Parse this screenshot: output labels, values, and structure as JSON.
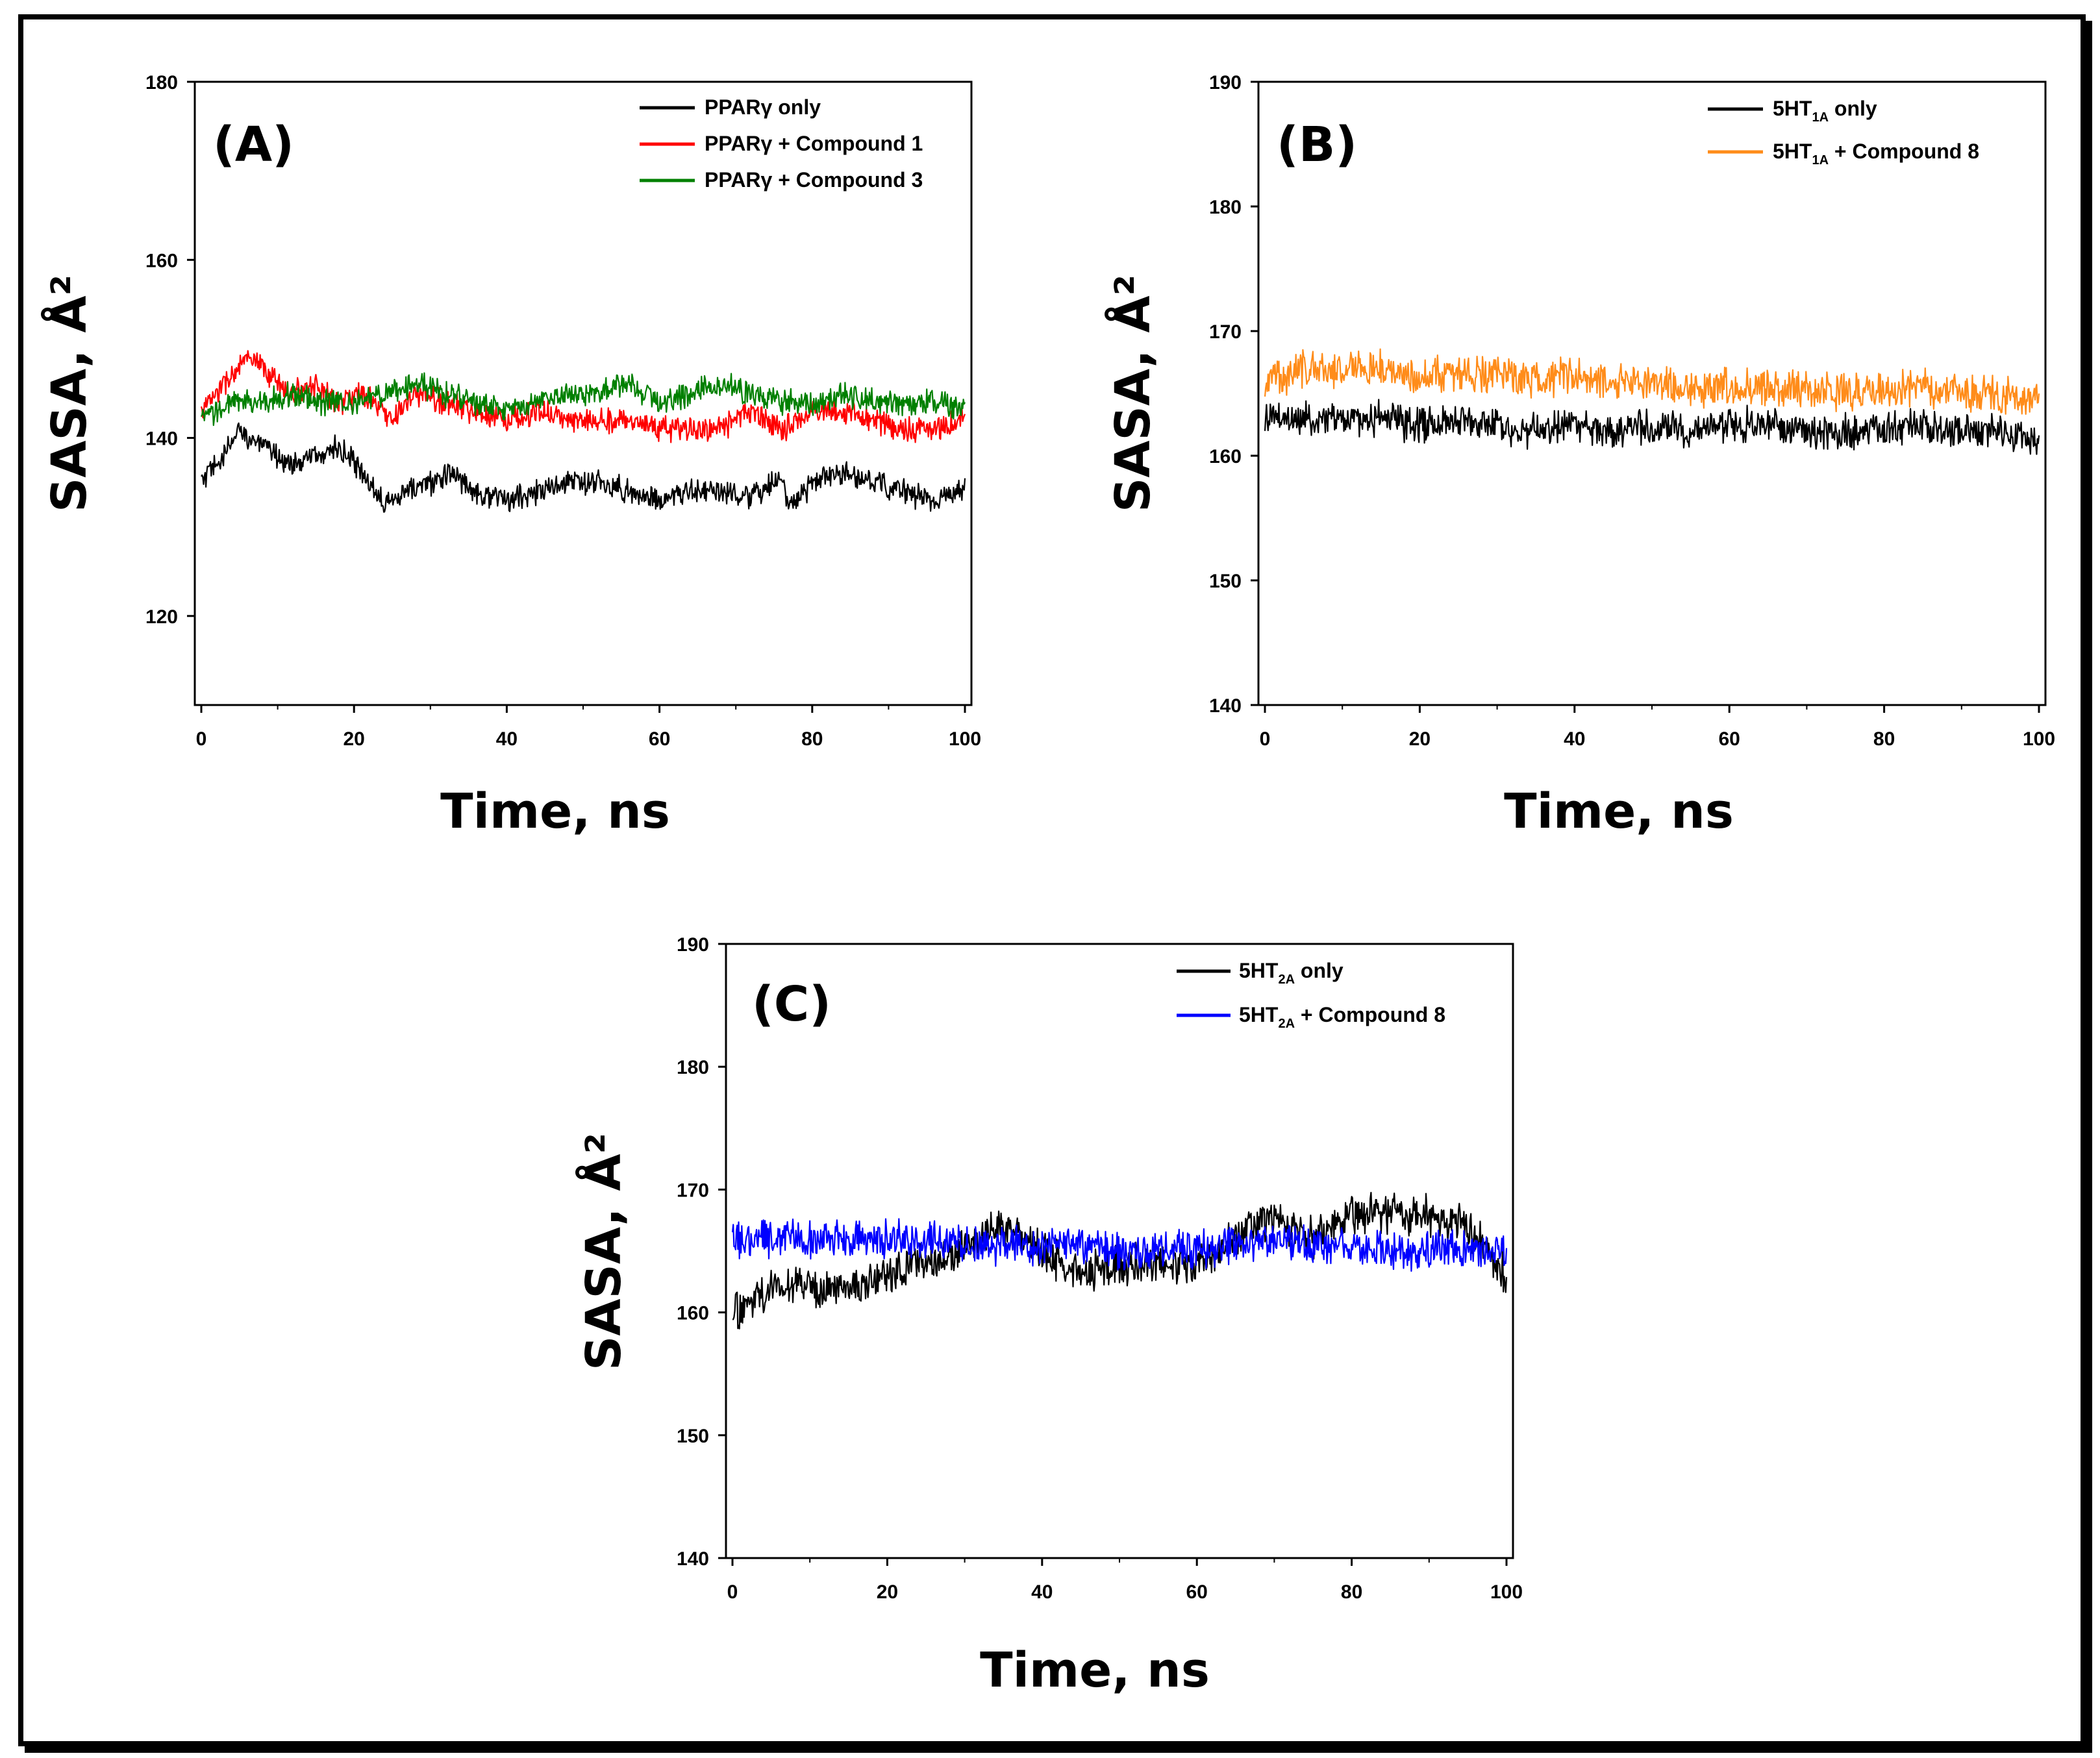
{
  "chart_data": [
    {
      "id": "A",
      "type": "line",
      "panel_label": "(A)",
      "xlabel": "Time, ns",
      "ylabel": "SASA, Å²",
      "xlim": [
        0,
        100
      ],
      "ylim": [
        110,
        180
      ],
      "xticks": [
        "0",
        "20",
        "40",
        "60",
        "80",
        "100"
      ],
      "yticks": [
        "120",
        "140",
        "160",
        "180"
      ],
      "legend_position": "top-right",
      "series": [
        {
          "name": "PPARγ only",
          "legend": {
            "main": "PPARγ only",
            "sub": "",
            "tail": ""
          },
          "color": "#000000",
          "noise": 1.1,
          "x": [
            0,
            3,
            5,
            8,
            12,
            15,
            18,
            21,
            24,
            27,
            30,
            33,
            36,
            40,
            44,
            48,
            52,
            56,
            60,
            64,
            68,
            72,
            76,
            77,
            80,
            84,
            88,
            92,
            96,
            100
          ],
          "values": [
            135,
            138,
            141,
            139,
            137,
            138,
            139,
            136,
            133,
            134,
            135,
            136,
            134,
            133,
            134,
            135,
            135,
            134,
            133,
            134,
            134,
            133,
            136,
            132,
            135,
            136,
            135,
            134,
            133,
            134
          ]
        },
        {
          "name": "PPARγ + Compound 1",
          "legend": {
            "main": "PPARγ + Compound 1",
            "sub": "",
            "tail": ""
          },
          "color": "#ff0000",
          "noise": 1.1,
          "x": [
            0,
            3,
            6,
            9,
            12,
            15,
            18,
            21,
            25,
            28,
            32,
            36,
            40,
            44,
            48,
            52,
            56,
            60,
            64,
            68,
            72,
            76,
            80,
            84,
            88,
            92,
            96,
            100
          ],
          "values": [
            143,
            146,
            149,
            147,
            145,
            146,
            144,
            145,
            142,
            145,
            144,
            143,
            142,
            143,
            142,
            142,
            142,
            141,
            141,
            141,
            143,
            141,
            143,
            143,
            142,
            141,
            141,
            142
          ]
        },
        {
          "name": "PPARγ + Compound 3",
          "legend": {
            "main": "PPARγ + Compound 3",
            "sub": "",
            "tail": ""
          },
          "color": "#008000",
          "noise": 1.1,
          "x": [
            0,
            4,
            8,
            12,
            16,
            20,
            24,
            28,
            32,
            36,
            40,
            44,
            48,
            52,
            56,
            60,
            64,
            68,
            72,
            76,
            80,
            84,
            88,
            92,
            96,
            100
          ],
          "values": [
            142,
            144,
            144,
            145,
            144,
            144,
            145,
            146,
            145,
            144,
            143,
            144,
            145,
            145,
            146,
            144,
            145,
            146,
            145,
            144,
            144,
            145,
            144,
            144,
            144,
            143
          ]
        }
      ]
    },
    {
      "id": "B",
      "type": "line",
      "panel_label": "(B)",
      "xlabel": "Time, ns",
      "ylabel": "SASA, Å²",
      "xlim": [
        0,
        100
      ],
      "ylim": [
        140,
        190
      ],
      "xticks": [
        "0",
        "20",
        "40",
        "60",
        "80",
        "100"
      ],
      "yticks": [
        "140",
        "150",
        "160",
        "170",
        "180",
        "190"
      ],
      "legend_position": "top-right",
      "series": [
        {
          "name": "5HT1A only",
          "legend": {
            "main": "5HT",
            "sub": "1A",
            "tail": " only"
          },
          "color": "#000000",
          "noise": 1.1,
          "x": [
            0,
            5,
            10,
            15,
            20,
            25,
            30,
            35,
            40,
            45,
            50,
            55,
            60,
            65,
            70,
            75,
            80,
            85,
            90,
            95,
            100
          ],
          "values": [
            163,
            163,
            163,
            163,
            162.5,
            163,
            162.5,
            162,
            162.5,
            162,
            162.5,
            162,
            162.5,
            162.5,
            162,
            162,
            162,
            162.5,
            162,
            162,
            161.5
          ]
        },
        {
          "name": "5HT1A + Compound 8",
          "legend": {
            "main": "5HT",
            "sub": "1A",
            "tail": " + Compound 8"
          },
          "color": "#ff8c1a",
          "noise": 1.2,
          "x": [
            0,
            5,
            10,
            15,
            20,
            25,
            30,
            35,
            40,
            45,
            50,
            55,
            60,
            65,
            70,
            75,
            80,
            85,
            90,
            95,
            100
          ],
          "values": [
            166,
            167,
            167,
            167,
            166.5,
            166.5,
            166.5,
            166,
            166.5,
            166,
            166,
            165.5,
            165.5,
            165.5,
            165.5,
            165,
            165,
            165.5,
            165,
            165,
            164.5
          ]
        }
      ]
    },
    {
      "id": "C",
      "type": "line",
      "panel_label": "(C)",
      "xlabel": "Time, ns",
      "ylabel": "SASA, Å²",
      "xlim": [
        0,
        100
      ],
      "ylim": [
        140,
        190
      ],
      "xticks": [
        "0",
        "20",
        "40",
        "60",
        "80",
        "100"
      ],
      "yticks": [
        "140",
        "150",
        "160",
        "170",
        "180",
        "190"
      ],
      "legend_position": "top-right",
      "series": [
        {
          "name": "5HT2A only",
          "legend": {
            "main": "5HT",
            "sub": "2A",
            "tail": " only"
          },
          "color": "#000000",
          "noise": 1.3,
          "x": [
            0,
            5,
            10,
            15,
            20,
            25,
            30,
            35,
            40,
            45,
            50,
            55,
            60,
            65,
            70,
            75,
            80,
            85,
            90,
            95,
            100
          ],
          "values": [
            160,
            162,
            162,
            162,
            163,
            164,
            165,
            167,
            165,
            163,
            164,
            164,
            164,
            166,
            168,
            166,
            168,
            168,
            168,
            167,
            163
          ]
        },
        {
          "name": "5HT2A + Compound 8",
          "legend": {
            "main": "5HT",
            "sub": "2A",
            "tail": " + Compound 8"
          },
          "color": "#0000ff",
          "noise": 1.2,
          "x": [
            0,
            5,
            10,
            15,
            20,
            25,
            30,
            35,
            40,
            45,
            50,
            55,
            60,
            65,
            70,
            75,
            80,
            85,
            90,
            95,
            100
          ],
          "values": [
            166,
            166,
            166,
            166,
            166,
            166,
            165.5,
            165.5,
            165.5,
            165.5,
            165,
            165,
            165,
            165.5,
            166,
            165.5,
            165.5,
            165,
            165,
            165,
            165
          ]
        }
      ]
    }
  ]
}
